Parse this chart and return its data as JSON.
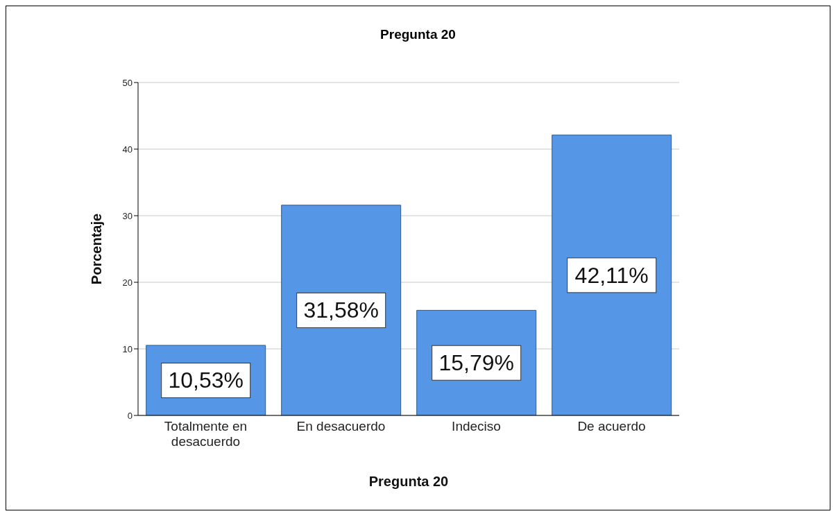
{
  "chart_data": {
    "type": "bar",
    "title": "Pregunta 20",
    "xlabel": "Pregunta 20",
    "ylabel": "Porcentaje",
    "categories": [
      "Totalmente en desacuerdo",
      "En desacuerdo",
      "Indeciso",
      "De acuerdo"
    ],
    "values": [
      10.53,
      31.58,
      15.79,
      42.11
    ],
    "value_labels": [
      "10,53%",
      "31,58%",
      "15,79%",
      "42,11%"
    ],
    "color": "#5596e6",
    "ylim": [
      0,
      50
    ],
    "yticks": [
      0,
      10,
      20,
      30,
      40,
      50
    ],
    "grid": "y"
  }
}
